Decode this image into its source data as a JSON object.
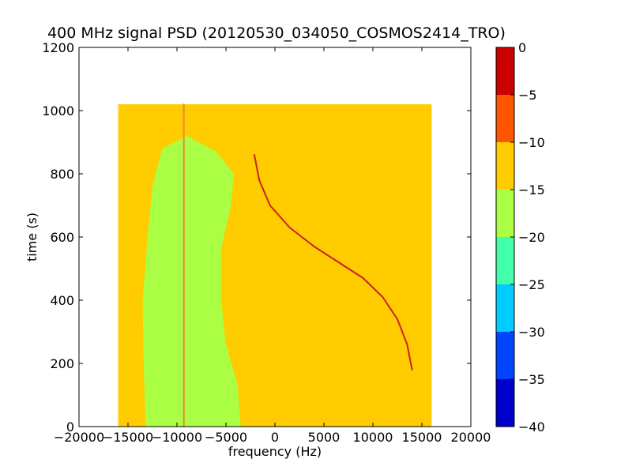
{
  "chart_data": {
    "type": "heatmap",
    "title": "400 MHz signal PSD (20120530_034050_COSMOS2414_TRO)",
    "xlabel": "frequency (Hz)",
    "ylabel": "time (s)",
    "xlim": [
      -20000,
      20000
    ],
    "ylim": [
      0,
      1200
    ],
    "x_ticks": [
      -20000,
      -15000,
      -10000,
      -5000,
      0,
      5000,
      10000,
      15000,
      20000
    ],
    "x_tick_labels": [
      "−20000",
      "−15000",
      "−10000",
      "−5000",
      "0",
      "5000",
      "10000",
      "15000",
      "20000"
    ],
    "y_ticks": [
      0,
      200,
      400,
      600,
      800,
      1000,
      1200
    ],
    "y_tick_labels": [
      "0",
      "200",
      "400",
      "600",
      "800",
      "1000",
      "1200"
    ],
    "data_extent": {
      "x": [
        -16000,
        16000
      ],
      "y": [
        0,
        1020
      ]
    },
    "background_level_color": "#ffcc00",
    "regions": [
      {
        "name": "low-power-band",
        "color": "#aaff44",
        "boundary": [
          [
            -13200,
            0
          ],
          [
            -3500,
            0
          ],
          [
            -3800,
            130
          ],
          [
            -5000,
            260
          ],
          [
            -5500,
            400
          ],
          [
            -5500,
            560
          ],
          [
            -4500,
            700
          ],
          [
            -4200,
            800
          ],
          [
            -6000,
            870
          ],
          [
            -9000,
            920
          ],
          [
            -11500,
            880
          ],
          [
            -12500,
            760
          ],
          [
            -13000,
            600
          ],
          [
            -13500,
            400
          ],
          [
            -13400,
            200
          ]
        ]
      }
    ],
    "lines": [
      {
        "name": "satellite-doppler-track",
        "color": "#cc2222",
        "points": [
          [
            -2100,
            860
          ],
          [
            -1600,
            780
          ],
          [
            -500,
            700
          ],
          [
            1500,
            630
          ],
          [
            4000,
            570
          ],
          [
            6500,
            520
          ],
          [
            9000,
            470
          ],
          [
            11000,
            410
          ],
          [
            12500,
            340
          ],
          [
            13500,
            260
          ],
          [
            14000,
            180
          ]
        ]
      },
      {
        "name": "vertical-spur",
        "color": "#e88a3a",
        "points": [
          [
            -9300,
            1020
          ],
          [
            -9300,
            0
          ]
        ]
      }
    ],
    "colorbar": {
      "ticks": [
        0,
        -5,
        -10,
        -15,
        -20,
        -25,
        -30,
        -35,
        -40
      ],
      "tick_labels": [
        "0",
        "−5",
        "−10",
        "−15",
        "−20",
        "−25",
        "−30",
        "−35",
        "−40"
      ],
      "range": [
        -40,
        0
      ],
      "bands": [
        {
          "from": -5,
          "to": 0,
          "color": "#cc0000"
        },
        {
          "from": -10,
          "to": -5,
          "color": "#ff5500"
        },
        {
          "from": -15,
          "to": -10,
          "color": "#ffcc00"
        },
        {
          "from": -20,
          "to": -15,
          "color": "#aaff44"
        },
        {
          "from": -25,
          "to": -20,
          "color": "#44ffaa"
        },
        {
          "from": -30,
          "to": -25,
          "color": "#00ccff"
        },
        {
          "from": -35,
          "to": -30,
          "color": "#0044ff"
        },
        {
          "from": -40,
          "to": -35,
          "color": "#0000cc"
        }
      ]
    }
  }
}
